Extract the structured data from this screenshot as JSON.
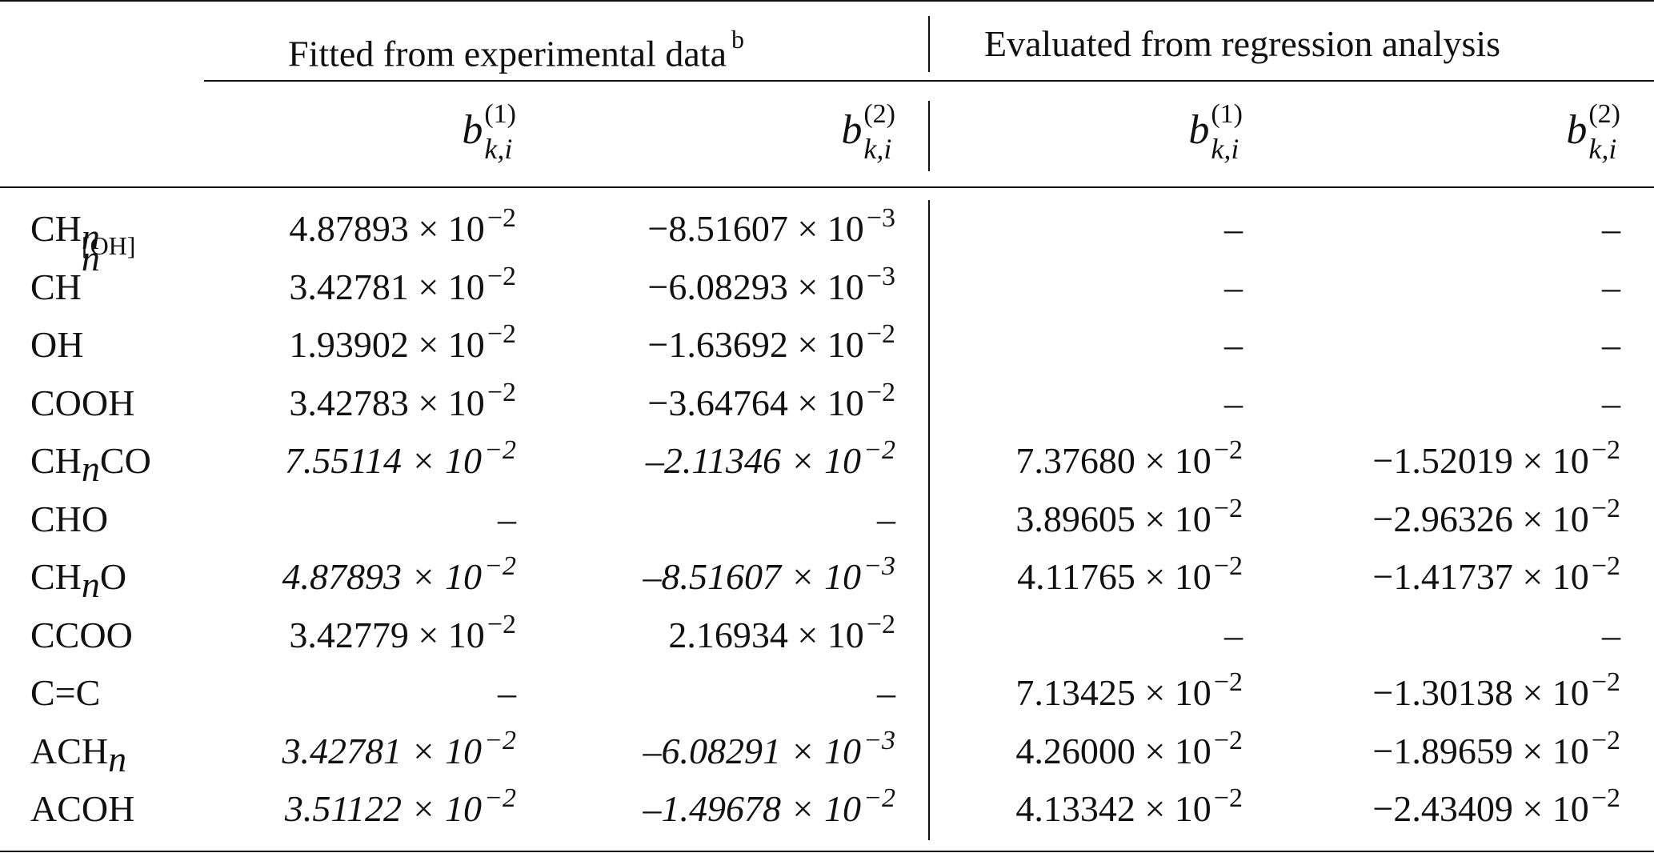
{
  "table": {
    "group_headers": {
      "fitted": "Fitted from experimental data",
      "fitted_note": "b",
      "evaluated": "Evaluated from regression analysis"
    },
    "column_headers": {
      "symbol": "b",
      "subscript": "k,i",
      "sup_1": "(1)",
      "sup_2": "(2)"
    },
    "rows": [
      {
        "label": "CH",
        "sub": "n",
        "sup": "",
        "tail": "",
        "c1": {
          "m": "4.87893",
          "e": "−2",
          "italic": false
        },
        "c2": {
          "m": "−8.51607",
          "e": "−3",
          "italic": false
        },
        "c3": {
          "m": "–",
          "e": "",
          "italic": false
        },
        "c4": {
          "m": "–",
          "e": "",
          "italic": false
        }
      },
      {
        "label": "CH",
        "sub": "n",
        "sup": "[OH]",
        "tail": "",
        "c1": {
          "m": "3.42781",
          "e": "−2",
          "italic": false
        },
        "c2": {
          "m": "−6.08293",
          "e": "−3",
          "italic": false
        },
        "c3": {
          "m": "–",
          "e": "",
          "italic": false
        },
        "c4": {
          "m": "–",
          "e": "",
          "italic": false
        }
      },
      {
        "label": "OH",
        "sub": "",
        "sup": "",
        "tail": "",
        "c1": {
          "m": "1.93902",
          "e": "−2",
          "italic": false
        },
        "c2": {
          "m": "−1.63692",
          "e": "−2",
          "italic": false
        },
        "c3": {
          "m": "–",
          "e": "",
          "italic": false
        },
        "c4": {
          "m": "–",
          "e": "",
          "italic": false
        }
      },
      {
        "label": "COOH",
        "sub": "",
        "sup": "",
        "tail": "",
        "c1": {
          "m": "3.42783",
          "e": "−2",
          "italic": false
        },
        "c2": {
          "m": "−3.64764",
          "e": "−2",
          "italic": false
        },
        "c3": {
          "m": "–",
          "e": "",
          "italic": false
        },
        "c4": {
          "m": "–",
          "e": "",
          "italic": false
        }
      },
      {
        "label": "CH",
        "sub": "n",
        "sup": "",
        "tail": "CO",
        "c1": {
          "m": "7.55114",
          "e": "−2",
          "italic": true
        },
        "c2": {
          "m": "–2.11346",
          "e": "−2",
          "italic": true
        },
        "c3": {
          "m": "7.37680",
          "e": "−2",
          "italic": false
        },
        "c4": {
          "m": "−1.52019",
          "e": "−2",
          "italic": false
        }
      },
      {
        "label": "CHO",
        "sub": "",
        "sup": "",
        "tail": "",
        "c1": {
          "m": "–",
          "e": "",
          "italic": false
        },
        "c2": {
          "m": "–",
          "e": "",
          "italic": false
        },
        "c3": {
          "m": "3.89605",
          "e": "−2",
          "italic": false
        },
        "c4": {
          "m": "−2.96326",
          "e": "−2",
          "italic": false
        }
      },
      {
        "label": "CH",
        "sub": "n",
        "sup": "",
        "tail": "O",
        "c1": {
          "m": "4.87893",
          "e": "−2",
          "italic": true
        },
        "c2": {
          "m": "–8.51607",
          "e": "−3",
          "italic": true
        },
        "c3": {
          "m": "4.11765",
          "e": "−2",
          "italic": false
        },
        "c4": {
          "m": "−1.41737",
          "e": "−2",
          "italic": false
        }
      },
      {
        "label": "CCOO",
        "sub": "",
        "sup": "",
        "tail": "",
        "c1": {
          "m": "3.42779",
          "e": "−2",
          "italic": false
        },
        "c2": {
          "m": "2.16934",
          "e": "−2",
          "italic": false
        },
        "c3": {
          "m": "–",
          "e": "",
          "italic": false
        },
        "c4": {
          "m": "–",
          "e": "",
          "italic": false
        }
      },
      {
        "label": "C=C",
        "sub": "",
        "sup": "",
        "tail": "",
        "c1": {
          "m": "–",
          "e": "",
          "italic": false
        },
        "c2": {
          "m": "–",
          "e": "",
          "italic": false
        },
        "c3": {
          "m": "7.13425",
          "e": "−2",
          "italic": false
        },
        "c4": {
          "m": "−1.30138",
          "e": "−2",
          "italic": false
        }
      },
      {
        "label": "ACH",
        "sub": "n",
        "sup": "",
        "tail": "",
        "c1": {
          "m": "3.42781",
          "e": "−2",
          "italic": true
        },
        "c2": {
          "m": "–6.08291",
          "e": "−3",
          "italic": true
        },
        "c3": {
          "m": "4.26000",
          "e": "−2",
          "italic": false
        },
        "c4": {
          "m": "−1.89659",
          "e": "−2",
          "italic": false
        }
      },
      {
        "label": "ACOH",
        "sub": "",
        "sup": "",
        "tail": "",
        "c1": {
          "m": "3.51122",
          "e": "−2",
          "italic": true
        },
        "c2": {
          "m": "–1.49678",
          "e": "−2",
          "italic": true
        },
        "c3": {
          "m": "4.13342",
          "e": "−2",
          "italic": false
        },
        "c4": {
          "m": "−2.43409",
          "e": "−2",
          "italic": false
        }
      }
    ]
  }
}
